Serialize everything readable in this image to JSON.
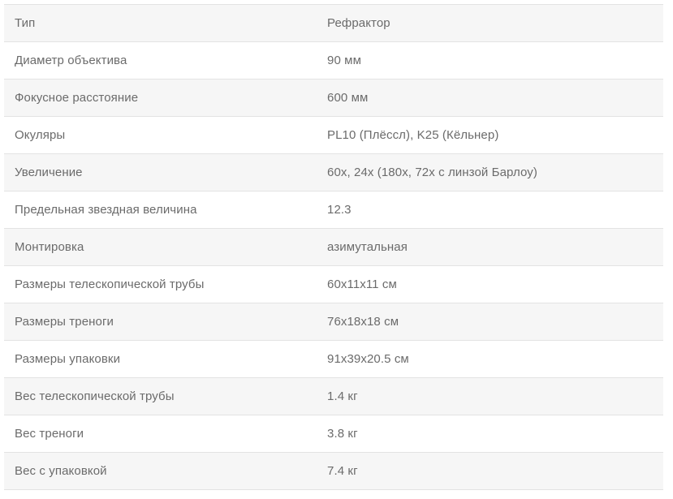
{
  "colors": {
    "stripe": "#f6f6f6",
    "border": "#e3e3e3",
    "text": "#6b6b6b",
    "background": "#ffffff"
  },
  "spec_table": {
    "rows": [
      {
        "label": "Тип",
        "value": "Рефрактор"
      },
      {
        "label": "Диаметр объектива",
        "value": "90 мм"
      },
      {
        "label": "Фокусное расстояние",
        "value": "600 мм"
      },
      {
        "label": "Окуляры",
        "value": "PL10 (Плёссл), K25 (Кёльнер)"
      },
      {
        "label": "Увеличение",
        "value": "60x, 24x (180x, 72x с линзой Барлоу)"
      },
      {
        "label": "Предельная звездная величина",
        "value": "12.3"
      },
      {
        "label": "Монтировка",
        "value": "азимутальная"
      },
      {
        "label": "Размеры телескопической трубы",
        "value": "60x11x11 см"
      },
      {
        "label": "Размеры треноги",
        "value": "76x18x18 см"
      },
      {
        "label": "Размеры упаковки",
        "value": "91x39x20.5 см"
      },
      {
        "label": "Вес телескопической трубы",
        "value": "1.4 кг"
      },
      {
        "label": "Вес треноги",
        "value": "3.8 кг"
      },
      {
        "label": "Вес с упаковкой",
        "value": "7.4 кг"
      }
    ]
  }
}
